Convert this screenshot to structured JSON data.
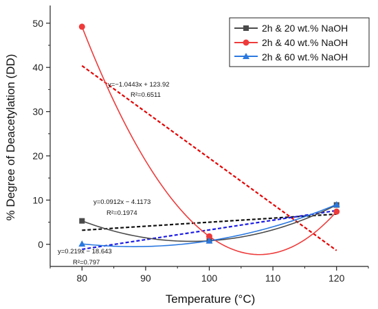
{
  "chart_data": {
    "type": "line",
    "xlabel": "Temperature (°C)",
    "ylabel": "% Degree of Deacetylation (DD)",
    "xlim": [
      75,
      125
    ],
    "ylim": [
      -5,
      54
    ],
    "x_ticks": [
      "80",
      "90",
      "100",
      "110",
      "120"
    ],
    "y_ticks": [
      "0",
      "10",
      "20",
      "30",
      "40",
      "50"
    ],
    "x_tick_values": [
      80,
      90,
      100,
      110,
      120
    ],
    "y_tick_values": [
      0,
      10,
      20,
      30,
      40,
      50
    ],
    "legend_position": "top-right",
    "grid": false,
    "series": [
      {
        "name": "2h & 20 wt.% NaOH",
        "color": "#4a4a4a",
        "marker": "square",
        "x": [
          80,
          100,
          120
        ],
        "values": [
          5.3,
          0.8,
          8.9
        ],
        "trend_color": "#111111",
        "trend": {
          "slope": 0.0912,
          "intercept": -4.1173
        }
      },
      {
        "name": "2h & 40 wt.% NaOH",
        "color": "#ee3a3a",
        "marker": "circle",
        "x": [
          80,
          100,
          120
        ],
        "values": [
          49.2,
          1.8,
          7.4
        ],
        "trend_color": "#e60000",
        "trend": {
          "slope": -1.0443,
          "intercept": 123.92
        }
      },
      {
        "name": "2h & 60 wt.% NaOH",
        "color": "#2a78e0",
        "marker": "triangle",
        "x": [
          80,
          100,
          120
        ],
        "values": [
          0.1,
          0.8,
          9.0
        ],
        "trend_color": "#1a1ae6",
        "trend": {
          "slope": 0.219,
          "intercept": -18.643
        }
      }
    ],
    "annotations": [
      {
        "line1": "y=−1.0443x + 123.92",
        "line2": "R²=0.6511"
      },
      {
        "line1": "y=0.0912x − 4.1173",
        "line2": "R²=0.1974"
      },
      {
        "line1": "y=0.219x − 18.643",
        "line2": "R²=0.797"
      }
    ]
  }
}
